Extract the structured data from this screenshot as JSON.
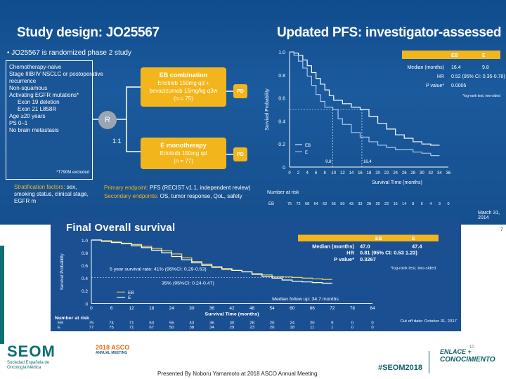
{
  "top_slide": {
    "left_title": "Study design: JO25567",
    "right_title": "Updated PFS: investigator-assessed",
    "bullet": "• JO25567 is randomized phase 2 study",
    "eligibility": [
      "Chemotherapy-naive",
      "Stage IIIB/IV NSCLC or postoperative",
      "recurrence",
      "Non-squamous",
      "Activating EGFR mutations*",
      "Exon 19 deletion",
      "Exon 21 L858R",
      "Age ≥20 years",
      "PS 0–1",
      "No brain metastasis"
    ],
    "eligibility_note": "*T790M excluded",
    "randomize": "R",
    "ratio": "1:1",
    "arm_eb": {
      "title": "EB combination",
      "line1": "Erlotinib 150mg qd +",
      "line2": "bevacizumab 15mg/kg q3w",
      "n": "(n = 75)"
    },
    "arm_e": {
      "title": "E monotherapy",
      "line1": "Erlotinib 150mg qd",
      "n": "(n = 77)"
    },
    "pd": "PD",
    "stratification_label": "Stratification factors:",
    "stratification_text": "sex, smoking status, clinical stage, EGFR m",
    "primary_label": "Primary endpoint:",
    "primary_text": "PFS (RECIST v1.1, independent review)",
    "secondary_label": "Secondary endpoints:",
    "secondary_text": "OS, tumor response, QoL, safety",
    "pfs": {
      "ylabel": "Survival Probability",
      "xlabel": "Survival Time (months)",
      "yticks": [
        "0",
        "0.2",
        "0.4",
        "0.6",
        "0.8",
        "1.0"
      ],
      "xticks": [
        "0",
        "2",
        "4",
        "6",
        "8",
        "10",
        "12",
        "14",
        "16",
        "18",
        "20",
        "22",
        "24",
        "26",
        "28",
        "30",
        "32",
        "34",
        "36"
      ],
      "table_headers": [
        "",
        "EB",
        "E"
      ],
      "table_rows": [
        [
          "Median (months)",
          "16.4",
          "9.8"
        ],
        [
          "HR",
          "0.52 (95% CI: 0.35-0.78)",
          ""
        ],
        [
          "P value*",
          "0.0005",
          ""
        ]
      ],
      "test_note": "*log-rank test, two-sided",
      "median_e": "9.8",
      "median_eb": "16.4",
      "legend": [
        "EB",
        "E"
      ],
      "risk_label": "Number at risk",
      "risk_eb_label": "EB",
      "risk_eb": [
        "75",
        "72",
        "68",
        "64",
        "62",
        "56",
        "50",
        "43",
        "33",
        "28",
        "25",
        "22",
        "16",
        "14",
        "8",
        "6",
        "4",
        "3",
        "0"
      ],
      "date": "March 31, 2014",
      "colors": {
        "eb": "#ffffff",
        "e": "#a9c6f0"
      }
    }
  },
  "os_slide": {
    "title": "Final Overall survival",
    "ylabel": "Survival Probability",
    "xlabel": "Survival Time (months)",
    "yticks": [
      "0",
      "0.2",
      "0.4",
      "0.6",
      "0.8",
      "1.0"
    ],
    "xticks": [
      "0",
      "6",
      "12",
      "18",
      "24",
      "30",
      "36",
      "42",
      "48",
      "54",
      "60",
      "66",
      "72",
      "78",
      "84"
    ],
    "table_headers": [
      "",
      "EB",
      "E"
    ],
    "table_rows": [
      [
        "Median (months)",
        "47.0",
        "47.4"
      ],
      [
        "HR",
        "0.81 (95% CI: 0.53 1.23)",
        ""
      ],
      [
        "P value*",
        "0.3267",
        ""
      ]
    ],
    "test_note": "*log-rank test, two-sided",
    "rate_eb": "5 year survival rate: 41% (95%CI: 0.29-0.53)",
    "rate_e": "35% (95%CI: 0.24-0.47)",
    "legend": [
      "EB",
      "E"
    ],
    "followup": "Median follow up: 34.7 months",
    "risk_label": "Number at risk",
    "risk_eb_label": "EB",
    "risk_e_label": "E",
    "risk_eb": [
      "75",
      "74",
      "71",
      "63",
      "55",
      "43",
      "36",
      "30",
      "28",
      "20",
      "24",
      "20",
      "9",
      "0",
      "0"
    ],
    "risk_e": [
      "77",
      "75",
      "71",
      "67",
      "50",
      "38",
      "34",
      "29",
      "23",
      "20",
      "18",
      "11",
      "1",
      "0",
      "0"
    ],
    "cutoff": "Cut off date: October 31, 2017",
    "colors": {
      "eb": "#f0d54a",
      "e": "#ffffff"
    }
  },
  "footer": {
    "asco": "2018 ASCO",
    "asco_sub": "ANNUAL MEETING",
    "page_left": "10",
    "page_top": "7",
    "secom_logo": "SEOM",
    "secom_sub": "Sociedad Española de Oncología Médica",
    "presented_by": "Presented By Noboru Yamamoto at 2018 ASCO Annual Meeting",
    "hashtag": "#SEOM2018",
    "conocimiento_l1": "ENLACE +",
    "conocimiento_l2": "CONOCIMIENTO"
  }
}
